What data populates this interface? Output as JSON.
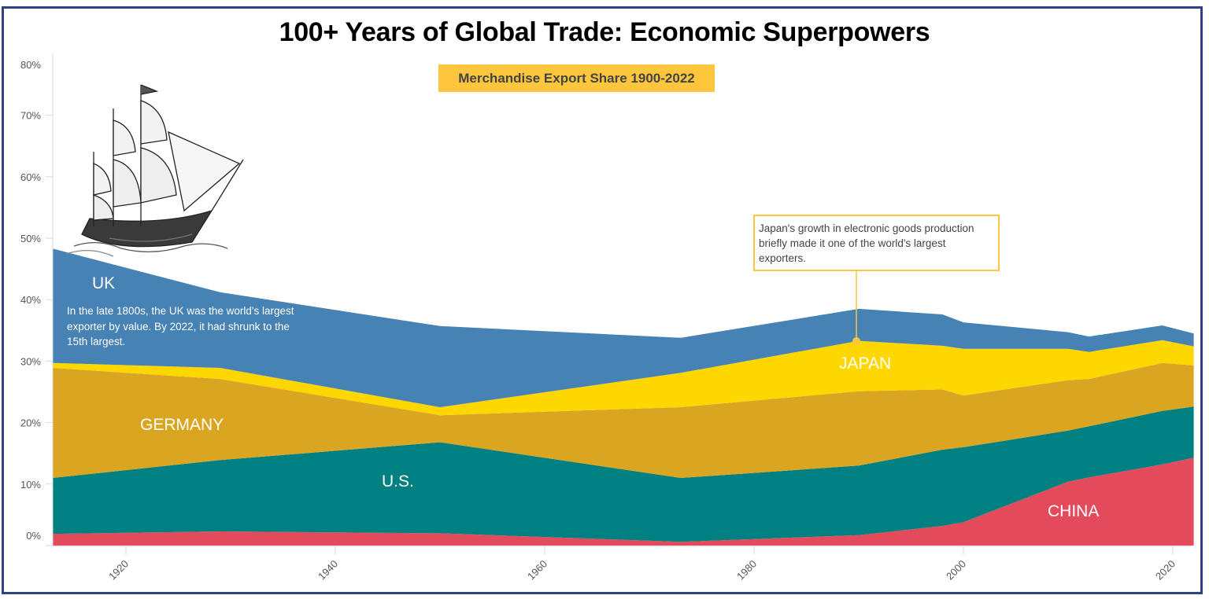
{
  "title": "100+ Years of Global Trade: Economic Superpowers",
  "subtitle": "Merchandise Export Share 1900-2022",
  "annotations": {
    "uk_label": "UK",
    "uk_note": "In the late 1800s, the UK was the world's largest exporter by value. By 2022, it had shrunk to the 15th largest.",
    "japan_note": "Japan's growth in electronic goods production briefly made it one of the world's largest exporters.",
    "japan_label": "JAPAN",
    "germany_label": "GERMANY",
    "us_label": "U.S.",
    "china_label": "CHINA"
  },
  "illustration": "sailing-ship-icon",
  "chart_data": {
    "type": "area",
    "stacked": true,
    "title": "100+ Years of Global Trade: Economic Superpowers",
    "subtitle": "Merchandise Export Share 1900-2022",
    "xlabel": "",
    "ylabel": "",
    "x": [
      1913,
      1929,
      1950,
      1973,
      1990,
      1998,
      2000,
      2010,
      2012,
      2019,
      2022
    ],
    "x_ticks": [
      1920,
      1940,
      1960,
      1980,
      2000,
      2020
    ],
    "y_ticks": [
      "0%",
      "10%",
      "20%",
      "30%",
      "40%",
      "50%",
      "60%",
      "70%",
      "80%"
    ],
    "ylim": [
      0,
      80
    ],
    "grid": false,
    "legend": "inline labels",
    "series": [
      {
        "name": "CHINA",
        "color": "#e34b5c",
        "values": [
          1.9,
          2.3,
          2.0,
          0.6,
          1.7,
          3.2,
          3.8,
          10.4,
          11.1,
          13.2,
          14.3
        ]
      },
      {
        "name": "U.S.",
        "color": "#008080",
        "values": [
          9.1,
          11.6,
          14.8,
          10.4,
          11.3,
          12.4,
          12.2,
          8.3,
          8.3,
          8.7,
          8.3
        ]
      },
      {
        "name": "GERMANY",
        "color": "#daa520",
        "values": [
          17.9,
          13.2,
          4.4,
          11.5,
          12.1,
          9.8,
          8.4,
          8.2,
          7.7,
          7.8,
          6.7
        ]
      },
      {
        "name": "JAPAN",
        "color": "#ffd700",
        "values": [
          0.8,
          1.8,
          1.3,
          5.6,
          8.2,
          7.1,
          7.6,
          5.1,
          4.4,
          3.7,
          3.1
        ]
      },
      {
        "name": "UK",
        "color": "#4682b4",
        "values": [
          18.6,
          12.3,
          13.2,
          5.7,
          5.2,
          5.1,
          4.3,
          2.7,
          2.5,
          2.4,
          2.1
        ]
      }
    ],
    "annotations": [
      {
        "series": "UK",
        "text": "In the late 1800s, the UK was the world's largest exporter by value. By 2022, it had shrunk to the 15th largest."
      },
      {
        "series": "JAPAN",
        "x": 1990,
        "text": "Japan's growth in electronic goods production briefly made it one of the world's largest exporters."
      }
    ]
  }
}
